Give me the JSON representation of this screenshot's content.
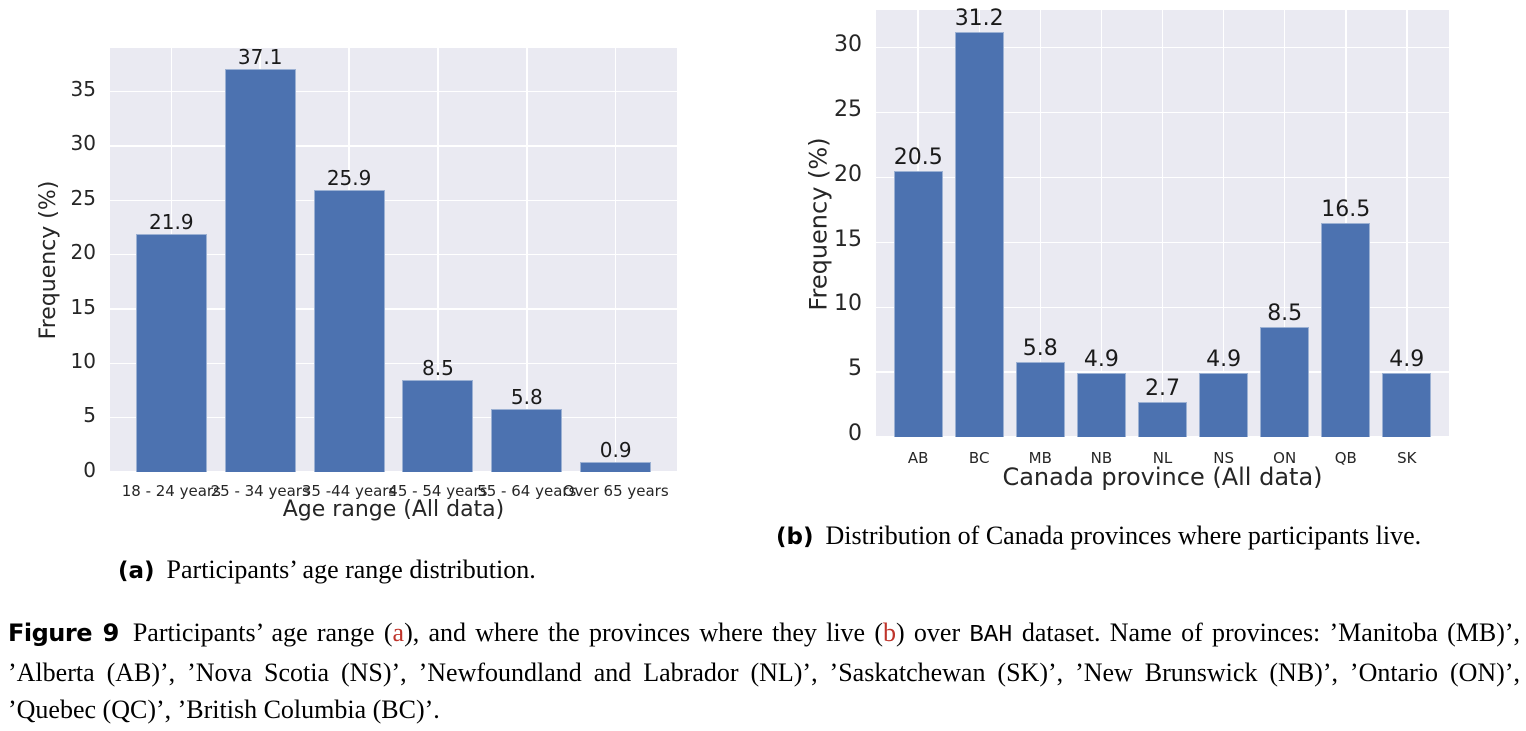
{
  "chart_data": [
    {
      "type": "bar",
      "panel": "a",
      "title": "",
      "categories": [
        "18 - 24 years",
        "25 - 34 years",
        "35 -44 years",
        "45 - 54 years",
        "55 - 64 years",
        "Over 65 years"
      ],
      "values": [
        21.9,
        37.1,
        25.9,
        8.5,
        5.8,
        0.9
      ],
      "bar_labels": [
        "21.9",
        "37.1",
        "25.9",
        "8.5",
        "5.8",
        "0.9"
      ],
      "xlabel": "Age range (All data)",
      "ylabel": "Frequency (%)",
      "yticks": [
        0,
        5,
        10,
        15,
        20,
        25,
        30,
        35
      ],
      "ylim": [
        0,
        39.0
      ],
      "grid": true,
      "legend": null,
      "bar_color": "#4c72b0",
      "plot_bg": "#eaeaf2",
      "grid_color": "#ffffff",
      "tick_color": "#262626",
      "label_color": "#1a1a1a"
    },
    {
      "type": "bar",
      "panel": "b",
      "title": "",
      "categories": [
        "AB",
        "BC",
        "MB",
        "NB",
        "NL",
        "NS",
        "ON",
        "QB",
        "SK"
      ],
      "values": [
        20.5,
        31.2,
        5.8,
        4.9,
        2.7,
        4.9,
        8.5,
        16.5,
        4.9
      ],
      "bar_labels": [
        "20.5",
        "31.2",
        "5.8",
        "4.9",
        "2.7",
        "4.9",
        "8.5",
        "16.5",
        "4.9"
      ],
      "xlabel": "Canada province (All data)",
      "ylabel": "Frequency (%)",
      "yticks": [
        0,
        5,
        10,
        15,
        20,
        25,
        30
      ],
      "ylim": [
        0,
        32.9
      ],
      "grid": true,
      "legend": null,
      "bar_color": "#4c72b0",
      "plot_bg": "#eaeaf2",
      "grid_color": "#ffffff",
      "tick_color": "#262626",
      "label_color": "#1a1a1a"
    }
  ],
  "captions": {
    "sub_a_marker": "(a)",
    "sub_a_text": "Participants’ age range distribution.",
    "sub_b_marker": "(b)",
    "sub_b_text": "Distribution of Canada provinces where participants live.",
    "figure_label": "Figure 9",
    "ref_color": "#bf342b",
    "figure_segments": [
      {
        "text": "Participants’ age range (",
        "style": "normal"
      },
      {
        "text": "a",
        "style": "ref"
      },
      {
        "text": "), and where the provinces where they live (",
        "style": "normal"
      },
      {
        "text": "b",
        "style": "ref"
      },
      {
        "text": ") over ",
        "style": "normal"
      },
      {
        "text": "BAH",
        "style": "mono"
      },
      {
        "text": " dataset.  Name of provinces: ’Manitoba (MB)’, ’Alberta (AB)’, ’Nova Scotia (NS)’, ’Newfoundland and Labrador (NL)’, ’Saskatchewan (SK)’, ’New Brunswick (NB)’, ’Ontario (ON)’, ’Quebec (QC)’, ’British Columbia (BC)’.",
        "style": "normal"
      }
    ]
  }
}
